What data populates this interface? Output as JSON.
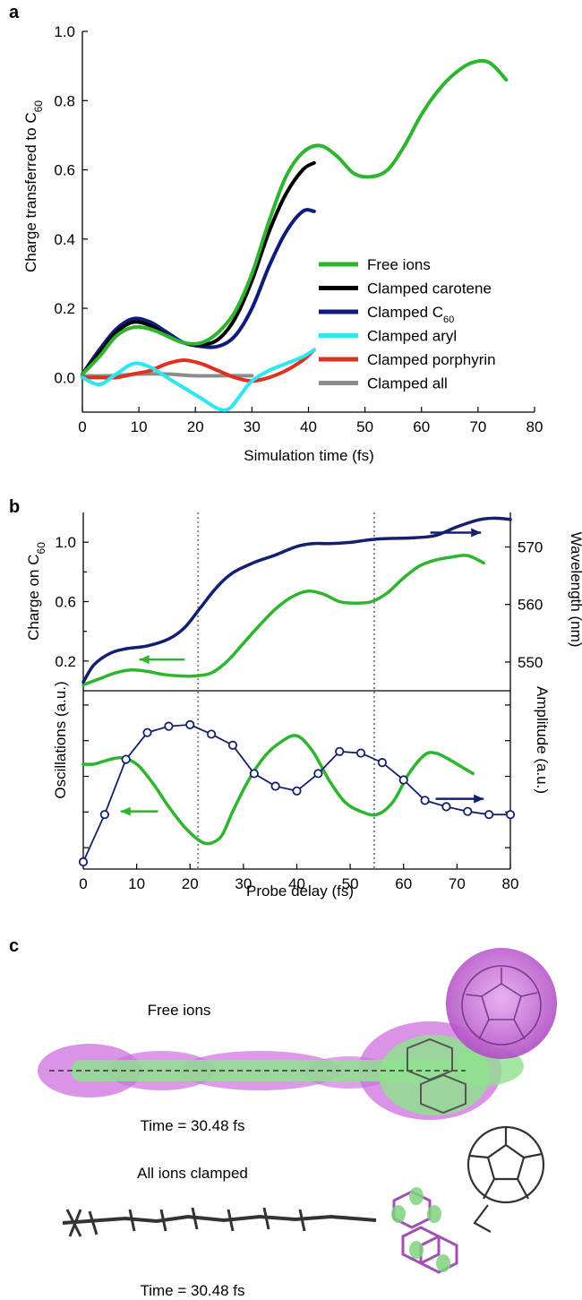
{
  "panel_labels": {
    "a": "a",
    "b": "b",
    "c": "c"
  },
  "colors": {
    "free": "#2db52d",
    "carotene": "#000000",
    "c60": "#0d1b7a",
    "aryl": "#2de6f0",
    "porphyrin": "#e0301e",
    "all": "#8c8c8c",
    "navy": "#13206f",
    "magenta": "#d070e0",
    "green": "#2db52d"
  },
  "chart_data": [
    {
      "type": "line",
      "panel": "a",
      "xlabel": "Simulation time (fs)",
      "ylabel": "Charge transferred to C60",
      "ylabel_main": "Charge transferred to C",
      "ylabel_sub": "60",
      "xlim": [
        0,
        80
      ],
      "ylim": [
        -0.1,
        1.0
      ],
      "xticks": [
        0,
        10,
        20,
        30,
        40,
        50,
        60,
        70,
        80
      ],
      "xtick_labels": [
        "0",
        "10",
        "20",
        "30",
        "40",
        "50",
        "60",
        "70",
        "80"
      ],
      "yticks": [
        0.0,
        0.2,
        0.4,
        0.6,
        0.8,
        1.0
      ],
      "ytick_labels": [
        "0.0",
        "0.2",
        "0.4",
        "0.6",
        "0.8",
        "1.0"
      ],
      "legend_placement": "lower-right",
      "series": [
        {
          "name": "Free ions",
          "label_main": "Free ions",
          "label_sub": "",
          "color": "#2db52d",
          "x": [
            0,
            3,
            6,
            9,
            12,
            15,
            18,
            21,
            24,
            27,
            30,
            33,
            36,
            39,
            42,
            45,
            48,
            51,
            54,
            57,
            60,
            63,
            66,
            69,
            72,
            75
          ],
          "y": [
            0.01,
            0.06,
            0.12,
            0.145,
            0.14,
            0.12,
            0.1,
            0.1,
            0.13,
            0.19,
            0.3,
            0.45,
            0.58,
            0.65,
            0.67,
            0.64,
            0.59,
            0.58,
            0.6,
            0.67,
            0.76,
            0.83,
            0.88,
            0.91,
            0.91,
            0.86
          ]
        },
        {
          "name": "Clamped carotene",
          "label_main": "Clamped carotene",
          "label_sub": "",
          "color": "#000000",
          "x": [
            0,
            3,
            6,
            9,
            12,
            15,
            18,
            21,
            24,
            27,
            30,
            33,
            36,
            39,
            41
          ],
          "y": [
            0.01,
            0.07,
            0.13,
            0.16,
            0.15,
            0.12,
            0.1,
            0.095,
            0.11,
            0.17,
            0.28,
            0.42,
            0.53,
            0.6,
            0.62
          ]
        },
        {
          "name": "Clamped C60",
          "label_main": "Clamped C",
          "label_sub": "60",
          "color": "#0d1b7a",
          "x": [
            0,
            3,
            6,
            9,
            12,
            15,
            18,
            21,
            24,
            27,
            30,
            33,
            36,
            39,
            41
          ],
          "y": [
            0.01,
            0.08,
            0.14,
            0.17,
            0.16,
            0.13,
            0.1,
            0.09,
            0.09,
            0.12,
            0.2,
            0.32,
            0.42,
            0.48,
            0.48
          ]
        },
        {
          "name": "Clamped aryl",
          "label_main": "Clamped aryl",
          "label_sub": "",
          "color": "#2de6f0",
          "x": [
            0,
            3,
            6,
            9,
            12,
            15,
            18,
            21,
            24,
            26,
            28,
            30,
            33,
            36,
            39,
            41
          ],
          "y": [
            0.0,
            -0.02,
            0.01,
            0.04,
            0.03,
            0.0,
            -0.03,
            -0.06,
            -0.09,
            -0.09,
            -0.05,
            -0.01,
            0.02,
            0.04,
            0.06,
            0.08
          ]
        },
        {
          "name": "Clamped porphyrin",
          "label_main": "Clamped porphyrin",
          "label_sub": "",
          "color": "#e0301e",
          "x": [
            0,
            3,
            6,
            9,
            12,
            15,
            18,
            21,
            24,
            27,
            30,
            33,
            36,
            39,
            41
          ],
          "y": [
            0.0,
            0.0,
            0.0,
            0.01,
            0.02,
            0.04,
            0.05,
            0.04,
            0.02,
            0.0,
            -0.01,
            0.0,
            0.02,
            0.05,
            0.08
          ]
        },
        {
          "name": "Clamped all",
          "label_main": "Clamped all",
          "label_sub": "",
          "color": "#8c8c8c",
          "x": [
            0,
            5,
            10,
            15,
            20,
            25,
            30
          ],
          "y": [
            0.005,
            0.005,
            0.01,
            0.01,
            0.005,
            0.005,
            0.005
          ]
        }
      ]
    },
    {
      "type": "line",
      "panel": "b-top",
      "xlim": [
        0,
        80
      ],
      "ylim_left": [
        0.0,
        1.2
      ],
      "ylim_right": [
        545,
        576
      ],
      "yticks_left": [
        0.2,
        0.6,
        1.0
      ],
      "ytick_labels_left": [
        "0.2",
        "0.6",
        "1.0"
      ],
      "yticks_right": [
        550,
        560,
        570
      ],
      "ytick_labels_right": [
        "550",
        "560",
        "570"
      ],
      "ylabel_left": "Charge on C60",
      "ylabel_left_main": "Charge on C",
      "ylabel_left_sub": "60",
      "ylabel_right": "Wavelength (nm)",
      "vlines": [
        21.5,
        54.5
      ],
      "series": [
        {
          "name": "Charge on C60",
          "axis": "left",
          "color": "#2db52d",
          "x": [
            0,
            3,
            6,
            9,
            12,
            15,
            18,
            21,
            24,
            27,
            30,
            33,
            36,
            39,
            42,
            45,
            48,
            51,
            54,
            57,
            60,
            63,
            66,
            69,
            72,
            75
          ],
          "y": [
            0.04,
            0.08,
            0.12,
            0.14,
            0.13,
            0.11,
            0.1,
            0.1,
            0.12,
            0.2,
            0.32,
            0.44,
            0.55,
            0.63,
            0.67,
            0.65,
            0.6,
            0.59,
            0.6,
            0.66,
            0.76,
            0.84,
            0.88,
            0.9,
            0.91,
            0.86
          ]
        },
        {
          "name": "Wavelength",
          "axis": "right",
          "color": "#13206f",
          "x": [
            0,
            2,
            5,
            8,
            12,
            16,
            19,
            22,
            25,
            28,
            32,
            36,
            40,
            43,
            46,
            50,
            54,
            58,
            62,
            66,
            70,
            74,
            77,
            80
          ],
          "y": [
            546.5,
            549.5,
            551.5,
            552.3,
            552.8,
            554,
            556,
            559.5,
            563,
            565.5,
            567.3,
            568.6,
            570.1,
            570.6,
            570.6,
            570.8,
            571.3,
            571.5,
            571.6,
            572,
            573.5,
            574.7,
            575,
            574.8
          ]
        }
      ],
      "arrows": [
        {
          "x_start": 10.5,
          "x_end": 19.0,
          "y": 0.21,
          "axis": "left",
          "direction": "left",
          "color": "#2db52d"
        },
        {
          "x_start": 65.0,
          "x_end": 74.5,
          "y": 572.5,
          "axis": "right",
          "direction": "right",
          "color": "#13206f"
        }
      ]
    },
    {
      "type": "line",
      "panel": "b-bottom",
      "xlabel": "Probe delay (fs)",
      "xlim": [
        0,
        80
      ],
      "xticks": [
        0,
        10,
        20,
        30,
        40,
        50,
        60,
        70,
        80
      ],
      "xtick_labels": [
        "0",
        "10",
        "20",
        "30",
        "40",
        "50",
        "60",
        "70",
        "80"
      ],
      "ylabel_left": "Oscillations (a.u.)",
      "ylabel_right": "Amplitude (a.u.)",
      "ylim": [
        0,
        1
      ],
      "vlines": [
        21.5,
        54.5
      ],
      "series": [
        {
          "name": "Oscillations",
          "axis": "left",
          "color": "#2db52d",
          "marker": "none",
          "x": [
            0,
            2,
            4,
            7,
            10,
            13,
            16,
            19,
            22,
            24,
            26,
            28,
            31,
            34,
            37,
            40,
            43,
            46,
            49,
            52,
            55,
            58,
            61,
            64,
            66,
            68,
            71,
            73
          ],
          "y": [
            0.62,
            0.62,
            0.64,
            0.66,
            0.62,
            0.5,
            0.35,
            0.22,
            0.13,
            0.12,
            0.17,
            0.32,
            0.52,
            0.67,
            0.76,
            0.8,
            0.7,
            0.52,
            0.38,
            0.32,
            0.3,
            0.38,
            0.56,
            0.68,
            0.69,
            0.66,
            0.6,
            0.56
          ]
        },
        {
          "name": "Amplitude",
          "axis": "right",
          "color": "#13206f",
          "marker": "circle",
          "x": [
            0,
            4,
            8,
            12,
            16,
            20,
            24,
            28,
            32,
            36,
            40,
            44,
            48,
            52,
            56,
            60,
            64,
            68,
            72,
            76,
            80
          ],
          "y": [
            0.0,
            0.3,
            0.65,
            0.82,
            0.86,
            0.87,
            0.81,
            0.74,
            0.56,
            0.48,
            0.45,
            0.56,
            0.7,
            0.69,
            0.63,
            0.52,
            0.39,
            0.35,
            0.32,
            0.3,
            0.3
          ]
        }
      ],
      "arrows": [
        {
          "x_start": 7.0,
          "x_end": 14.0,
          "y": 0.32,
          "axis": "left",
          "direction": "left",
          "color": "#2db52d"
        },
        {
          "x_start": 66.0,
          "x_end": 75.0,
          "y": 0.4,
          "axis": "right",
          "direction": "right",
          "color": "#13206f"
        }
      ]
    }
  ],
  "panel_c": {
    "top_title": "Free ions",
    "top_time": "Time = 30.48 fs",
    "bottom_title": "All ions clamped",
    "bottom_time": "Time = 30.48 fs"
  }
}
